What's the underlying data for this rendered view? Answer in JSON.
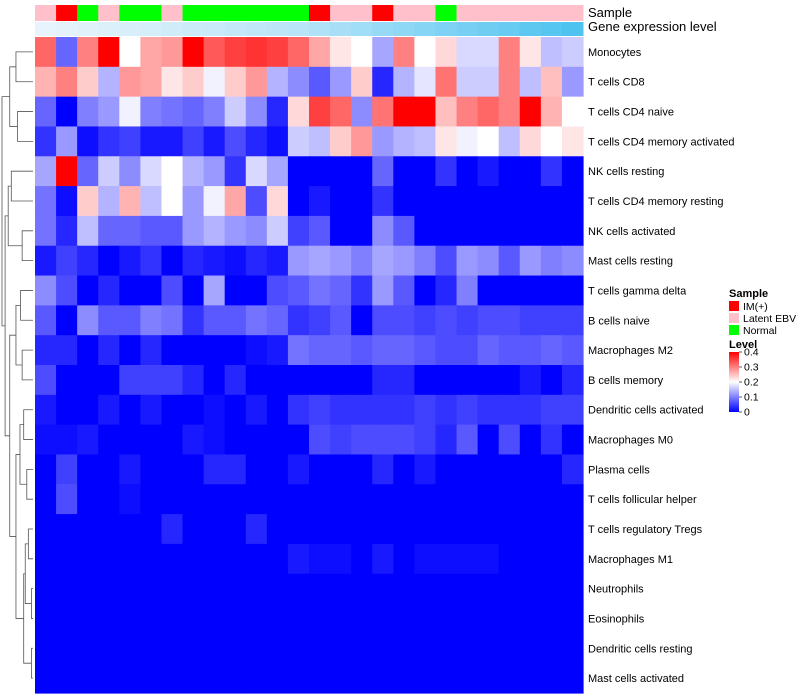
{
  "chart_data": {
    "type": "heatmap",
    "title": "",
    "annotation_labels": [
      "Sample",
      "Gene expression level"
    ],
    "sample_groups": [
      "Latent EBV",
      "IM(+)",
      "Normal",
      "Latent EBV",
      "Normal",
      "Normal",
      "Latent EBV",
      "Normal",
      "Normal",
      "Normal",
      "Normal",
      "Normal",
      "Normal",
      "IM(+)",
      "Latent EBV",
      "Latent EBV",
      "IM(+)",
      "Latent EBV",
      "Latent EBV",
      "Normal",
      "Latent EBV",
      "Latent EBV",
      "Latent EBV",
      "Latent EBV",
      "Latent EBV",
      "Latent EBV"
    ],
    "expression_levels": [
      0.04,
      0.05,
      0.06,
      0.07,
      0.08,
      0.09,
      0.1,
      0.11,
      0.12,
      0.13,
      0.14,
      0.15,
      0.16,
      0.18,
      0.2,
      0.22,
      0.24,
      0.26,
      0.28,
      0.3,
      0.32,
      0.34,
      0.36,
      0.38,
      0.4,
      0.42
    ],
    "rows": [
      "Monocytes",
      "T cells CD8",
      "T cells CD4 naive",
      "T cells CD4 memory activated",
      "NK cells resting",
      "T cells CD4 memory resting",
      "NK cells activated",
      "Mast cells resting",
      "T cells gamma delta",
      "B cells naive",
      "Macrophages M2",
      "B cells memory",
      "Dendritic cells activated",
      "Macrophages M0",
      "Plasma cells",
      "T cells follicular helper",
      "T cells regulatory  Tregs",
      "Macrophages M1",
      "Neutrophils",
      "Eosinophils",
      "Dendritic cells resting",
      "Mast cells activated"
    ],
    "values": [
      [
        0.32,
        0.08,
        0.3,
        0.4,
        0.2,
        0.27,
        0.28,
        0.4,
        0.33,
        0.35,
        0.36,
        0.35,
        0.32,
        0.27,
        0.22,
        0.2,
        0.13,
        0.3,
        0.2,
        0.23,
        0.17,
        0.17,
        0.3,
        0.22,
        0.15,
        0.16
      ],
      [
        0.26,
        0.3,
        0.24,
        0.14,
        0.28,
        0.27,
        0.22,
        0.24,
        0.19,
        0.24,
        0.28,
        0.14,
        0.11,
        0.07,
        0.12,
        0.24,
        0.03,
        0.14,
        0.18,
        0.31,
        0.16,
        0.16,
        0.3,
        0.15,
        0.25,
        0.12
      ],
      [
        0.08,
        0.0,
        0.1,
        0.12,
        0.19,
        0.1,
        0.09,
        0.08,
        0.1,
        0.16,
        0.11,
        0.03,
        0.23,
        0.35,
        0.32,
        0.11,
        0.31,
        0.4,
        0.4,
        0.25,
        0.3,
        0.32,
        0.3,
        0.4,
        0.26,
        0.2
      ],
      [
        0.04,
        0.12,
        0.01,
        0.04,
        0.05,
        0.02,
        0.02,
        0.05,
        0.02,
        0.06,
        0.03,
        0.01,
        0.16,
        0.15,
        0.24,
        0.28,
        0.12,
        0.14,
        0.15,
        0.22,
        0.19,
        0.2,
        0.15,
        0.23,
        0.2,
        0.22
      ],
      [
        0.13,
        0.4,
        0.08,
        0.16,
        0.11,
        0.17,
        0.2,
        0.14,
        0.12,
        0.04,
        0.17,
        0.13,
        0.0,
        0.0,
        0.0,
        0.0,
        0.08,
        0.0,
        0.0,
        0.04,
        0.0,
        0.02,
        0.0,
        0.0,
        0.04,
        0.0
      ],
      [
        0.09,
        0.01,
        0.24,
        0.14,
        0.26,
        0.15,
        0.2,
        0.12,
        0.19,
        0.27,
        0.06,
        0.23,
        0.0,
        0.02,
        0.0,
        0.0,
        0.04,
        0.0,
        0.0,
        0.0,
        0.0,
        0.0,
        0.0,
        0.0,
        0.0,
        0.0
      ],
      [
        0.09,
        0.03,
        0.15,
        0.08,
        0.08,
        0.07,
        0.07,
        0.12,
        0.14,
        0.12,
        0.11,
        0.16,
        0.05,
        0.07,
        0.0,
        0.0,
        0.11,
        0.07,
        0.0,
        0.0,
        0.0,
        0.0,
        0.0,
        0.0,
        0.0,
        0.0
      ],
      [
        0.02,
        0.05,
        0.03,
        0.0,
        0.02,
        0.04,
        0.0,
        0.03,
        0.02,
        0.01,
        0.03,
        0.02,
        0.12,
        0.13,
        0.12,
        0.1,
        0.13,
        0.12,
        0.1,
        0.06,
        0.12,
        0.11,
        0.07,
        0.12,
        0.1,
        0.11
      ],
      [
        0.11,
        0.06,
        0.0,
        0.03,
        0.0,
        0.0,
        0.06,
        0.0,
        0.13,
        0.0,
        0.0,
        0.06,
        0.07,
        0.09,
        0.08,
        0.04,
        0.12,
        0.07,
        0.0,
        0.03,
        0.1,
        0.0,
        0.0,
        0.0,
        0.0,
        0.0
      ],
      [
        0.07,
        0.0,
        0.11,
        0.07,
        0.07,
        0.1,
        0.09,
        0.04,
        0.07,
        0.07,
        0.09,
        0.08,
        0.04,
        0.05,
        0.07,
        0.0,
        0.06,
        0.06,
        0.05,
        0.06,
        0.05,
        0.06,
        0.06,
        0.05,
        0.05,
        0.05
      ],
      [
        0.03,
        0.03,
        0.0,
        0.03,
        0.0,
        0.03,
        0.0,
        0.0,
        0.0,
        0.0,
        0.01,
        0.02,
        0.09,
        0.08,
        0.08,
        0.07,
        0.08,
        0.08,
        0.07,
        0.06,
        0.06,
        0.08,
        0.07,
        0.07,
        0.08,
        0.07
      ],
      [
        0.06,
        0.0,
        0.0,
        0.0,
        0.05,
        0.05,
        0.05,
        0.03,
        0.0,
        0.03,
        0.0,
        0.0,
        0.0,
        0.0,
        0.0,
        0.0,
        0.03,
        0.03,
        0.0,
        0.0,
        0.0,
        0.0,
        0.0,
        0.02,
        0.0,
        0.03
      ],
      [
        0.02,
        0.0,
        0.0,
        0.02,
        0.0,
        0.02,
        0.0,
        0.0,
        0.01,
        0.0,
        0.02,
        0.0,
        0.04,
        0.05,
        0.04,
        0.04,
        0.04,
        0.04,
        0.05,
        0.04,
        0.05,
        0.04,
        0.04,
        0.04,
        0.05,
        0.05
      ],
      [
        0.01,
        0.01,
        0.02,
        0.0,
        0.0,
        0.0,
        0.0,
        0.02,
        0.01,
        0.0,
        0.0,
        0.0,
        0.0,
        0.06,
        0.05,
        0.06,
        0.06,
        0.06,
        0.05,
        0.03,
        0.07,
        0.0,
        0.06,
        0.0,
        0.04,
        0.0
      ],
      [
        0.0,
        0.05,
        0.0,
        0.0,
        0.02,
        0.0,
        0.0,
        0.0,
        0.03,
        0.03,
        0.0,
        0.0,
        0.02,
        0.0,
        0.0,
        0.0,
        0.03,
        0.0,
        0.02,
        0.0,
        0.0,
        0.0,
        0.0,
        0.0,
        0.0,
        0.03
      ],
      [
        0.0,
        0.06,
        0.0,
        0.0,
        0.01,
        0.0,
        0.0,
        0.0,
        0.0,
        0.0,
        0.0,
        0.0,
        0.0,
        0.0,
        0.0,
        0.0,
        0.0,
        0.0,
        0.0,
        0.0,
        0.0,
        0.0,
        0.0,
        0.0,
        0.0,
        0.0
      ],
      [
        0.0,
        0.0,
        0.0,
        0.0,
        0.0,
        0.0,
        0.03,
        0.0,
        0.0,
        0.0,
        0.03,
        0.0,
        0.0,
        0.0,
        0.0,
        0.0,
        0.0,
        0.0,
        0.0,
        0.0,
        0.0,
        0.0,
        0.0,
        0.0,
        0.0,
        0.0
      ],
      [
        0.0,
        0.0,
        0.0,
        0.0,
        0.0,
        0.0,
        0.0,
        0.0,
        0.0,
        0.0,
        0.0,
        0.0,
        0.02,
        0.01,
        0.01,
        0.0,
        0.02,
        0.0,
        0.01,
        0.01,
        0.01,
        0.01,
        0.0,
        0.0,
        0.0,
        0.0
      ],
      [
        0.0,
        0.0,
        0.0,
        0.0,
        0.0,
        0.0,
        0.0,
        0.0,
        0.0,
        0.0,
        0.0,
        0.0,
        0.0,
        0.0,
        0.0,
        0.0,
        0.0,
        0.0,
        0.0,
        0.0,
        0.0,
        0.0,
        0.0,
        0.0,
        0.0,
        0.0
      ],
      [
        0.0,
        0.0,
        0.0,
        0.0,
        0.0,
        0.0,
        0.0,
        0.0,
        0.0,
        0.0,
        0.0,
        0.0,
        0.0,
        0.0,
        0.0,
        0.0,
        0.0,
        0.0,
        0.0,
        0.0,
        0.0,
        0.0,
        0.0,
        0.0,
        0.0,
        0.0
      ],
      [
        0.0,
        0.0,
        0.0,
        0.0,
        0.0,
        0.0,
        0.0,
        0.0,
        0.0,
        0.0,
        0.0,
        0.0,
        0.0,
        0.0,
        0.0,
        0.0,
        0.0,
        0.0,
        0.0,
        0.0,
        0.0,
        0.0,
        0.0,
        0.0,
        0.0,
        0.0
      ],
      [
        0.0,
        0.0,
        0.0,
        0.0,
        0.0,
        0.0,
        0.0,
        0.0,
        0.0,
        0.0,
        0.0,
        0.0,
        0.0,
        0.0,
        0.0,
        0.0,
        0.0,
        0.0,
        0.0,
        0.0,
        0.0,
        0.0,
        0.0,
        0.0,
        0.0,
        0.0
      ]
    ],
    "dendrogram_merges": [
      [
        0,
        1,
        0.55
      ],
      [
        2,
        3,
        0.5
      ],
      [
        4,
        5,
        0.7
      ],
      [
        6,
        7,
        0.35
      ],
      [
        8,
        9,
        0.4
      ],
      [
        10,
        11,
        0.35
      ],
      [
        12,
        13,
        0.3
      ],
      [
        14,
        15,
        0.2
      ],
      [
        16,
        17,
        0.15
      ],
      [
        18,
        19,
        0.05
      ],
      [
        20,
        21,
        0.05
      ],
      [
        1,
        3,
        0.75
      ],
      [
        5,
        7,
        0.8
      ],
      [
        9,
        11,
        0.55
      ],
      [
        13,
        15,
        0.42
      ],
      [
        17,
        19,
        0.25
      ],
      [
        19,
        21,
        0.3
      ],
      [
        15,
        21,
        0.55
      ],
      [
        11,
        21,
        0.75
      ],
      [
        7,
        21,
        0.9
      ],
      [
        3,
        21,
        1.0
      ]
    ],
    "legend": {
      "sample": {
        "title": "Sample",
        "items": [
          {
            "label": "IM(+)",
            "color": "#ff0000"
          },
          {
            "label": "Latent EBV",
            "color": "#ffc0cb"
          },
          {
            "label": "Normal",
            "color": "#00ff00"
          }
        ]
      },
      "level": {
        "title": "Level",
        "ticks": [
          "0.4",
          "0.3",
          "0.2",
          "0.1",
          "0"
        ],
        "tick_values": [
          0.4,
          0.3,
          0.2,
          0.1,
          0.0
        ],
        "min": 0.0,
        "max": 0.4
      },
      "position": "right"
    },
    "colors": {
      "low": "#0000ff",
      "mid": "#ffffff",
      "high": "#ff0000",
      "expr_low": "#e8f4fb",
      "expr_high": "#4fc3f0"
    }
  }
}
